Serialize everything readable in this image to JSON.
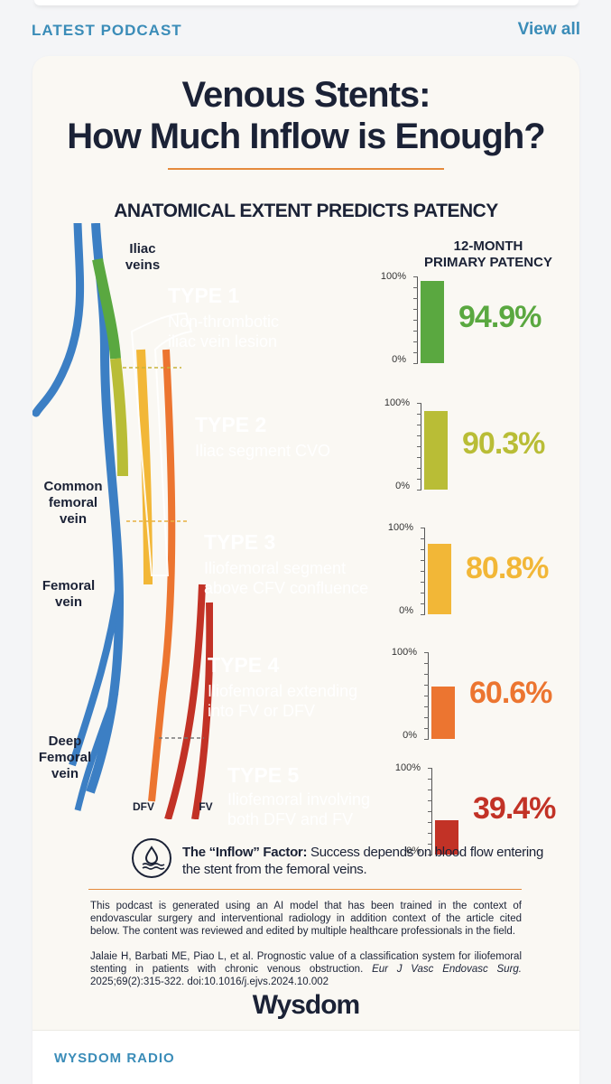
{
  "header": {
    "section_title": "LATEST PODCAST",
    "view_all": "View all"
  },
  "infographic": {
    "title_line1": "Venous Stents:",
    "title_line2": "How Much Inflow is Enough?",
    "subtitle": "ANATOMICAL EXTENT PREDICTS PATENCY",
    "anatomy_labels": {
      "iliac": [
        "Iliac",
        "veins"
      ],
      "common_femoral": [
        "Common",
        "femoral",
        "vein"
      ],
      "femoral": [
        "Femoral",
        "vein"
      ],
      "deep_femoral": [
        "Deep",
        "Femoral",
        "vein"
      ],
      "dfv": "DFV",
      "fv": "FV"
    },
    "patency_header": [
      "12-MONTH",
      "PRIMARY PATENCY"
    ],
    "axis_top": "100%",
    "axis_bottom": "0%",
    "types": [
      {
        "title": "TYPE 1",
        "desc": [
          "Non-thrombotic",
          "iliac vein lesion"
        ],
        "patency": 94.9,
        "patency_label": "94.9%",
        "color": "#5aa840"
      },
      {
        "title": "TYPE 2",
        "desc": [
          "Iliac segment CVO"
        ],
        "patency": 90.3,
        "patency_label": "90.3%",
        "color": "#b9bd36"
      },
      {
        "title": "TYPE 3",
        "desc": [
          "Iliofemoral segment",
          "above CFV confluence"
        ],
        "patency": 80.8,
        "patency_label": "80.8%",
        "color": "#f2b737"
      },
      {
        "title": "TYPE 4",
        "desc": [
          "Iliofemoral extending",
          "into FV or DFV"
        ],
        "patency": 60.6,
        "patency_label": "60.6%",
        "color": "#ec7530"
      },
      {
        "title": "TYPE 5",
        "desc": [
          "Iliofemoral involving",
          "both DFV and FV"
        ],
        "patency": 39.4,
        "patency_label": "39.4%",
        "color": "#c23226"
      }
    ],
    "inflow_bold": "The “Inflow” Factor:",
    "inflow_text": " Success depends on blood flow entering the stent from the femoral veins.",
    "disclaimer": "This podcast is generated using an AI model that has been trained in the context of endovascular surgery and interventional radiology in addition context of the article cited below. The content was reviewed and edited by multiple healthcare professionals in the field.",
    "citation_plain": "Jalaie H, Barbati ME, Piao L, et al. Prognostic value of a classification system for iliofemoral stenting in patients with chronic venous obstruction. ",
    "citation_journal": "Eur J Vasc Endovasc Surg.",
    "citation_tail": " 2025;69(2):315-322. doi:10.1016/j.ejvs.2024.10.002",
    "logo": "Wysdom"
  },
  "bottom": {
    "section_title": "WYSDOM RADIO"
  },
  "colors": {
    "accent": "#3a8cb8",
    "navy": "#1b2236",
    "vein_blue": "#3c7fc4"
  }
}
